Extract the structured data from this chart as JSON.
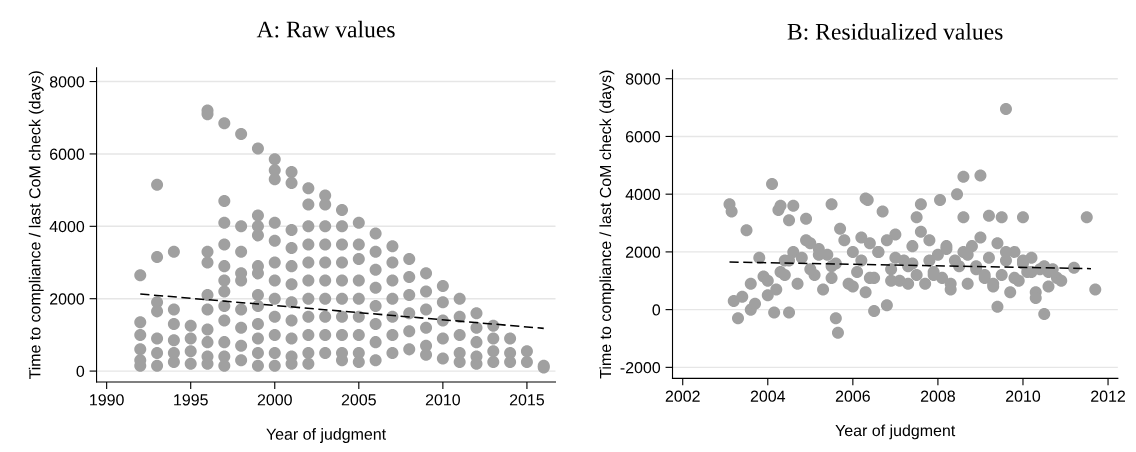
{
  "chart_data": [
    {
      "type": "scatter",
      "title": "A: Raw values",
      "xlabel": "Year of judgment",
      "ylabel": "Time to compliance / last CoM check (days)",
      "xlim": [
        1989.4,
        2016.7
      ],
      "xticks": [
        1990,
        1995,
        2000,
        2005,
        2010,
        2015
      ],
      "ylim": [
        -300,
        8380
      ],
      "yticks": [
        0,
        2000,
        4000,
        6000,
        8000
      ],
      "grid": "y",
      "series": [
        {
          "color": "#a0a0a0",
          "marker": "circle",
          "x": [
            1992,
            1992,
            1992,
            1992,
            1992,
            1992,
            1993,
            1993,
            1993,
            1993,
            1993,
            1993,
            1993,
            1994,
            1994,
            1994,
            1994,
            1994,
            1994,
            1995,
            1995,
            1995,
            1995,
            1996,
            1996,
            1996,
            1996,
            1996,
            1996,
            1996,
            1996,
            1996,
            1996,
            1997,
            1997,
            1997,
            1997,
            1997,
            1997,
            1997,
            1997,
            1997,
            1997,
            1997,
            1997,
            1998,
            1998,
            1998,
            1998,
            1998,
            1998,
            1998,
            1998,
            1998,
            1999,
            1999,
            1999,
            1999,
            1999,
            1999,
            1999,
            1999,
            1999,
            1999,
            1999,
            1999,
            2000,
            2000,
            2000,
            2000,
            2000,
            2000,
            2000,
            2000,
            2000,
            2000,
            2000,
            2000,
            2001,
            2001,
            2001,
            2001,
            2001,
            2001,
            2001,
            2001,
            2001,
            2001,
            2001,
            2002,
            2002,
            2002,
            2002,
            2002,
            2002,
            2002,
            2002,
            2002,
            2002,
            2002,
            2003,
            2003,
            2003,
            2003,
            2003,
            2003,
            2003,
            2003,
            2003,
            2003,
            2004,
            2004,
            2004,
            2004,
            2004,
            2004,
            2004,
            2004,
            2004,
            2004,
            2005,
            2005,
            2005,
            2005,
            2005,
            2005,
            2005,
            2005,
            2005,
            2006,
            2006,
            2006,
            2006,
            2006,
            2006,
            2006,
            2006,
            2007,
            2007,
            2007,
            2007,
            2007,
            2007,
            2007,
            2008,
            2008,
            2008,
            2008,
            2008,
            2008,
            2009,
            2009,
            2009,
            2009,
            2009,
            2009,
            2010,
            2010,
            2010,
            2010,
            2010,
            2011,
            2011,
            2011,
            2011,
            2011,
            2012,
            2012,
            2012,
            2012,
            2012,
            2013,
            2013,
            2013,
            2013,
            2014,
            2014,
            2014,
            2015,
            2015,
            2016,
            2016
          ],
          "values": [
            2650,
            1350,
            1000,
            600,
            300,
            150,
            5150,
            3150,
            1900,
            1650,
            900,
            500,
            150,
            3300,
            1700,
            1300,
            850,
            500,
            250,
            1250,
            900,
            550,
            200,
            7200,
            7100,
            3300,
            3000,
            2100,
            1700,
            1150,
            800,
            400,
            200,
            6850,
            4700,
            4100,
            3500,
            2900,
            2500,
            2200,
            1800,
            1400,
            800,
            400,
            150,
            6550,
            4000,
            3300,
            2700,
            2500,
            1700,
            1200,
            700,
            300,
            6150,
            4300,
            4000,
            3750,
            2900,
            2700,
            2100,
            1800,
            1300,
            900,
            500,
            150,
            5850,
            5550,
            5300,
            4100,
            3600,
            3000,
            2500,
            2000,
            1500,
            1000,
            500,
            150,
            5500,
            5200,
            3900,
            3400,
            2900,
            2400,
            1900,
            1400,
            900,
            400,
            200,
            5050,
            4600,
            4000,
            3500,
            3000,
            2500,
            2000,
            1500,
            1000,
            500,
            200,
            4850,
            4600,
            4000,
            3500,
            3000,
            2500,
            2000,
            1500,
            1000,
            500,
            4450,
            4000,
            3500,
            3000,
            2500,
            2000,
            1500,
            1000,
            500,
            300,
            4100,
            3500,
            3100,
            2500,
            2000,
            1500,
            1000,
            500,
            250,
            3800,
            3300,
            2800,
            2300,
            1800,
            1300,
            800,
            300,
            3450,
            3000,
            2500,
            2000,
            1500,
            1000,
            500,
            3100,
            2600,
            2100,
            1600,
            1100,
            600,
            2700,
            2200,
            1700,
            1200,
            700,
            450,
            2350,
            1900,
            1400,
            900,
            350,
            2000,
            1500,
            1000,
            500,
            250,
            1600,
            1200,
            800,
            400,
            200,
            1250,
            900,
            550,
            250,
            900,
            500,
            250,
            550,
            250,
            150,
            100
          ]
        },
        {
          "type": "line",
          "color": "#000000",
          "marker": "none",
          "line_style": "dashed",
          "x": [
            1992,
            2016
          ],
          "values": [
            2130,
            1180
          ]
        }
      ]
    },
    {
      "type": "scatter",
      "title": "B: Residualized values",
      "xlabel": "Year of judgment",
      "ylabel": "Time to compliance / last CoM check (days)",
      "xlim": [
        2001.76,
        2012.23
      ],
      "xticks": [
        2002,
        2004,
        2006,
        2008,
        2010,
        2012
      ],
      "ylim": [
        -2380,
        8300
      ],
      "yticks": [
        -2000,
        0,
        2000,
        4000,
        6000,
        8000
      ],
      "grid": "y",
      "series": [
        {
          "color": "#a0a0a0",
          "marker": "circle",
          "x": [
            2003.1,
            2003.15,
            2003.3,
            2003.2,
            2003.5,
            2003.6,
            2003.7,
            2004.1,
            2004.25,
            2004.3,
            2004.6,
            2004.5,
            2004.9,
            2004.15,
            2004.5,
            2005.5,
            2005.6,
            2005.65,
            2006.3,
            2006.35,
            2006.7,
            2006.5,
            2006.8,
            2007.6,
            2008.05,
            2008.45,
            2008.6,
            2009.0,
            2009.6,
            2011.5,
            2011.7,
            2010.5,
            2009.4,
            2011.2,
            2010.0,
            2009.2,
            2009.5,
            2008.6,
            2007.5,
            2003.8,
            2004.0,
            2003.4,
            2004.2,
            2003.6,
            2003.9,
            2004.0,
            2004.4,
            2004.6,
            2004.8,
            2005.0,
            2005.2,
            2005.4,
            2005.6,
            2005.8,
            2006.0,
            2006.2,
            2006.4,
            2006.6,
            2006.8,
            2007.0,
            2007.2,
            2007.4,
            2007.6,
            2007.8,
            2008.0,
            2008.2,
            2008.4,
            2008.6,
            2008.8,
            2009.0,
            2009.2,
            2009.4,
            2009.6,
            2009.8,
            2010.0,
            2010.2,
            2010.4,
            2010.6,
            2010.8,
            2004.3,
            2004.7,
            2005.1,
            2005.3,
            2005.5,
            2005.9,
            2006.1,
            2006.3,
            2006.5,
            2006.9,
            2007.1,
            2007.3,
            2007.5,
            2007.7,
            2007.9,
            2008.1,
            2008.3,
            2008.5,
            2008.7,
            2008.9,
            2009.1,
            2009.3,
            2009.5,
            2009.7,
            2009.9,
            2010.1,
            2010.3,
            2010.5,
            2004.5,
            2004.9,
            2005.2,
            2005.7,
            2006.2,
            2006.6,
            2007.0,
            2007.4,
            2007.8,
            2008.2,
            2008.7,
            2009.1,
            2009.6,
            2010.0,
            2010.3,
            2010.7,
            2010.9,
            2004.4,
            2005.0,
            2005.5,
            2006.0,
            2006.4,
            2006.9,
            2007.3,
            2007.9,
            2008.3,
            2008.9,
            2009.3,
            2009.8,
            2010.2,
            2010.6
          ],
          "values": [
            3650,
            3400,
            -300,
            300,
            2750,
            0,
            200,
            4350,
            3450,
            3600,
            3600,
            3100,
            3150,
            -100,
            -100,
            3650,
            -300,
            -800,
            3850,
            3800,
            3400,
            -50,
            150,
            3650,
            3800,
            4000,
            4600,
            4650,
            6950,
            3200,
            700,
            -150,
            100,
            1450,
            3200,
            3250,
            3200,
            3200,
            3200,
            1800,
            500,
            450,
            700,
            900,
            1150,
            1000,
            1700,
            2000,
            1800,
            2300,
            2100,
            1900,
            1600,
            2400,
            2000,
            1700,
            2300,
            2000,
            2400,
            1800,
            1700,
            2200,
            2700,
            2400,
            1900,
            2200,
            1700,
            2000,
            2200,
            2500,
            1800,
            2300,
            1700,
            2000,
            1600,
            1800,
            1400,
            1300,
            1100,
            1300,
            900,
            1200,
            700,
            1100,
            900,
            1300,
            600,
            1100,
            1400,
            1000,
            1500,
            1200,
            900,
            1300,
            1100,
            700,
            1500,
            900,
            1400,
            1100,
            800,
            1200,
            600,
            1000,
            1300,
            600,
            1500,
            1700,
            2400,
            1900,
            2800,
            2500,
            2000,
            2600,
            1600,
            1700,
            2100,
            1900,
            1200,
            2000,
            1700,
            400,
            1400,
            1000,
            1200,
            1400,
            1500,
            800,
            1100,
            1000,
            900,
            1200,
            900,
            1500,
            900,
            1100,
            1300,
            800
          ]
        },
        {
          "type": "line",
          "color": "#000000",
          "marker": "none",
          "line_style": "dashed",
          "x": [
            2003.1,
            2011.6
          ],
          "values": [
            1650,
            1420
          ]
        }
      ]
    }
  ]
}
